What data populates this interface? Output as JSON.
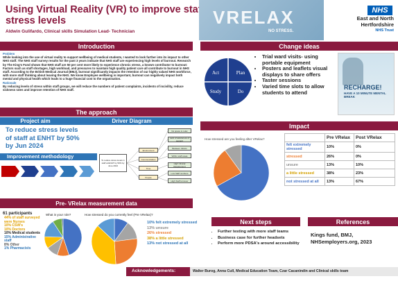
{
  "header": {
    "title": "Using Virtual Reality (VR) to improve staff stress levels",
    "authors": "Aldwin Gulifardo, Clinical skills Simulation Lead- Technician",
    "logo_text": "VRELAX",
    "logo_tagline": "NO STRESS.",
    "nhs_badge": "NHS",
    "trust_line1": "East and North",
    "trust_line2": "Hertfordshire",
    "trust_line3": "NHS Trust"
  },
  "introduction": {
    "heading": "Introduction",
    "problem_label": "Problem",
    "problem_text": "While looking into the use of virtual reality to support wellbeing of medical students, I wanted to look further into its impact to other NHS staff. The NHS staff survey results for the past 3 years indicate that NHS staff are experiencing high levels of burnout. Research by The King's Fund shows that NHS staff are 50 per cent more likely to experience chronic stress, a known contributor to burnout: Factors such as staff shortages, high workload, and pressures to maintain high quality patient care all contribute to burnout in NHS staff. According to the British Medical Journal (BMJ), burnout significantly impacts the retention of our highly valued NHS workforce, with more staff thinking about leaving the NHS. We know Employee wellbeing is important, burnout can negatively impact both mental and physical health which leads to a huge financial cost to the organisation.",
    "rationale_label": "Rationale",
    "rationale_text": "By reducing levels of stress within staff groups, we will reduce the numbers of patient complaints, incidents of incivility, reduce sickness rates and improve retention of NHS staff."
  },
  "change_ideas": {
    "heading": "Change ideas",
    "pdsa": [
      "Act",
      "Plan",
      "Study",
      "Do"
    ],
    "items": [
      "Trial ward visits- using portable equipment",
      "Posters and leaflets visual displays to share offers",
      "Taster sessions",
      "Varied time slots to allow students to attend"
    ],
    "poster_title": "RECHARGE!",
    "poster_sub": "HAVE A 10 MINUTE MENTAL BREAK"
  },
  "approach": {
    "heading": "The approach",
    "project_aim_heading": "Project aim",
    "driver_heading": "Driver Diagram",
    "aim_text": "To reduce stress levels of staff at ENHT by 50% by Jun 2024",
    "improvement_heading": "Improvement methodology",
    "driver_goal": "To reduce stress levels in staff at ENHT by 50% by June 2024",
    "primary": [
      "Environment",
      "Communication",
      "Time",
      "People"
    ],
    "secondary": [
      "No space to relax",
      "Lack of awareness of support",
      "Between Clinics",
      "Within staff areas",
      "High Clinical Requirement",
      "Low Staff numbers",
      "High Staff turnover"
    ]
  },
  "impact": {
    "heading": "Impact",
    "pie_title": "How stressed are you feeling after VRelax?",
    "col_pre": "Pre VRelax",
    "col_post": "Post VRelax",
    "rows": [
      {
        "label": "felt extremely stressed",
        "pre": "10%",
        "post": "0%",
        "color": "#4472c4"
      },
      {
        "label": "stressed",
        "pre": "26%",
        "post": "0%",
        "color": "#ed7d31"
      },
      {
        "label": "unsure",
        "pre": "13%",
        "post": "10%",
        "color": "#888888"
      },
      {
        "label": "a little stressed",
        "pre": "38%",
        "post": "23%",
        "color": "#d4a000"
      },
      {
        "label": "not stressed at all",
        "pre": "13%",
        "post": "67%",
        "color": "#4472c4"
      }
    ]
  },
  "pre_data": {
    "heading": "Pre- VRelax measurement data",
    "participants": "61 participants",
    "groups": [
      {
        "text": "44% of staff surveyed were Nurses",
        "color": "#e0a000"
      },
      {
        "text": "10% CSW's",
        "color": "#e0a000"
      },
      {
        "text": "10% Doctors",
        "color": "#e0a000"
      },
      {
        "text": "10% Medical students",
        "color": "#222222"
      },
      {
        "text": "15% Administrative staff",
        "color": "#2e75b6"
      },
      {
        "text": "8% Other",
        "color": "#555555"
      },
      {
        "text": "1% Pharmacists",
        "color": "#2e75b6"
      }
    ],
    "role_title": "What is your role?",
    "stress_title": "How stressed do you currently feel (Pre VRelax)?",
    "stress_legend": [
      {
        "text": "10% felt extremely stressed",
        "color": "#2e75b6"
      },
      {
        "text": "13% unsure",
        "color": "#888888"
      },
      {
        "text": "26% stressed",
        "color": "#ed7d31"
      },
      {
        "text": "38% a little stressed",
        "color": "#d4a000"
      },
      {
        "text": "13% not stressed at all",
        "color": "#2e75b6"
      }
    ]
  },
  "next_steps": {
    "heading": "Next steps",
    "items": [
      "Further testing with more staff teams",
      "Business case for further headsets",
      "Perform more PDSA's around accessibility"
    ]
  },
  "references": {
    "heading": "References",
    "text": "Kings fund, BMJ, NHSemployers.org, 2023"
  },
  "ack": {
    "label": "Acknowledgements:",
    "text": "Walter Burog, Anna Cull, Medical Education Team, Czar Cacanindin and Clinical skills team"
  },
  "chart_data": [
    {
      "type": "pie",
      "title": "How stressed are you feeling after VRelax?",
      "categories": [
        "not stressed at all",
        "a little stressed",
        "unsure"
      ],
      "values": [
        67,
        23,
        10
      ],
      "colors": [
        "#4472c4",
        "#ed7d31",
        "#a5a5a5"
      ]
    },
    {
      "type": "pie",
      "title": "What is your role?",
      "categories": [
        "Nurses",
        "CSW's",
        "Doctors",
        "Medical students",
        "Administrative staff",
        "Other",
        "Pharmacists"
      ],
      "values": [
        44,
        10,
        10,
        10,
        15,
        8,
        1
      ],
      "colors": [
        "#4472c4",
        "#ed7d31",
        "#a5a5a5",
        "#ffc000",
        "#5b9bd5",
        "#70ad47",
        "#264478"
      ]
    },
    {
      "type": "pie",
      "title": "How stressed do you currently feel (Pre VRelax)?",
      "categories": [
        "felt extremely stressed",
        "unsure",
        "stressed",
        "a little stressed",
        "not stressed at all"
      ],
      "values": [
        10,
        13,
        26,
        38,
        13
      ],
      "colors": [
        "#4472c4",
        "#a5a5a5",
        "#ed7d31",
        "#ffc000",
        "#5b9bd5"
      ]
    }
  ]
}
